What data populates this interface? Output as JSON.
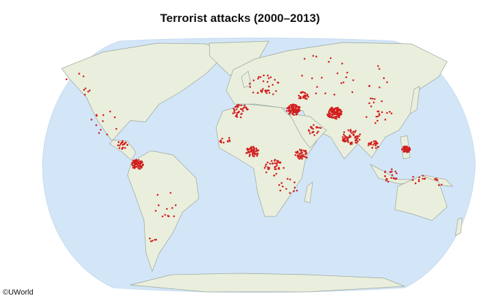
{
  "title": "Terrorist attacks (2000–2013)",
  "credit": "©UWorld"
}
